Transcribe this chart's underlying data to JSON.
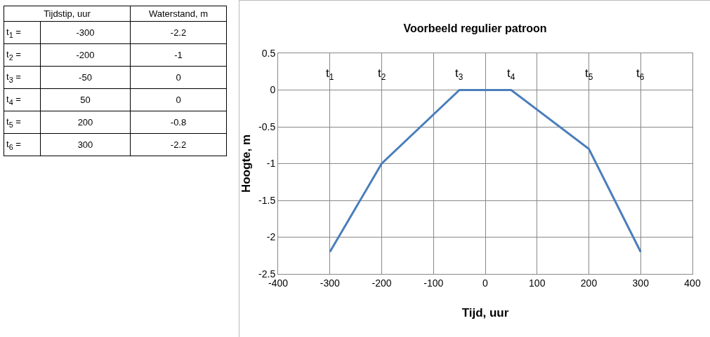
{
  "chart_data": {
    "type": "line",
    "title": "Voorbeeld regulier patroon",
    "xlabel": "Tijd, uur",
    "ylabel": "Hoogte, m",
    "x": [
      -300,
      -200,
      -50,
      50,
      200,
      300
    ],
    "values": [
      -2.2,
      -1,
      0,
      0,
      -0.8,
      -2.2
    ],
    "color": "#4a7ebb",
    "xlim": [
      -400,
      400
    ],
    "xticks": [
      -400,
      -300,
      -200,
      -100,
      0,
      100,
      200,
      300,
      400
    ],
    "ylim": [
      -2.5,
      0.5
    ],
    "yticks": [
      -2.5,
      -2,
      -1.5,
      -1,
      -0.5,
      0,
      0.5
    ],
    "grid": true,
    "marker": "none",
    "line_style": "solid",
    "annotations": [
      "Tijdstip, uur",
      "Waterstand, m",
      "t$_{1}$ =",
      "t$_{2}$ =",
      "t$_{3}$ =",
      "t$_{4}$ =",
      "t$_{5}$ =",
      "t$_{6}$ =",
      "-300",
      "-200",
      "-50",
      "50",
      "200",
      "300",
      "-2.2",
      "-1",
      "0",
      "0",
      "-0.8",
      "-2.2",
      "t$_{1}$",
      "t$_{2}$",
      "t$_{3}$",
      "t$_{4}$",
      "t$_{5}$",
      "t$_{6}$"
    ]
  }
}
